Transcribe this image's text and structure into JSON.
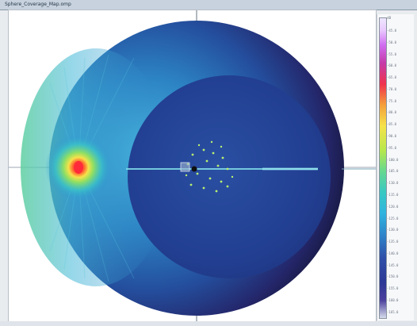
{
  "window": {
    "title": "Sphere_Coverage_Map.omp"
  },
  "legend": {
    "caption": "dB",
    "footer": "",
    "ticks": [
      "-45.0",
      "-50.0",
      "-55.0",
      "-60.0",
      "-65.0",
      "-70.0",
      "-75.0",
      "-80.0",
      "-85.0",
      "-90.0",
      "-95.0",
      "-100.0",
      "-105.0",
      "-110.0",
      "-115.0",
      "-120.0",
      "-125.0",
      "-130.0",
      "-135.0",
      "-140.0",
      "-145.0",
      "-150.0",
      "-155.0",
      "-160.0",
      "-165.0"
    ]
  },
  "colors": {
    "sphere_shadow": "#12162a",
    "sphere_body": "#3fa5cf",
    "inner_disc": "#213e8c",
    "hotspot": "#ff2b3a",
    "glow_yellow": "#f5e85a",
    "glow_green": "#6ad983",
    "axis_line": "#3d4f63",
    "accent_line": "#7cd6e6",
    "dot": "#b9f070"
  },
  "icons": {
    "center_marker": "crosshair-marker-icon"
  }
}
